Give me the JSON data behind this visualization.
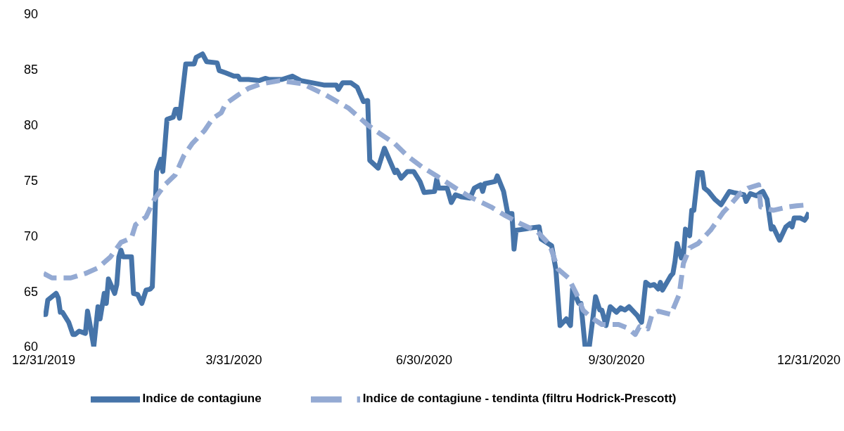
{
  "chart_data": {
    "type": "line",
    "ylim": [
      60,
      90
    ],
    "yticks": [
      60,
      65,
      70,
      75,
      80,
      85,
      90
    ],
    "xlim": [
      "2019-12-31",
      "2020-12-31"
    ],
    "xticks": [
      {
        "value": "2019-12-31",
        "label": "12/31/2019"
      },
      {
        "value": "2020-03-31",
        "label": "3/31/2020"
      },
      {
        "value": "2020-06-30",
        "label": "6/30/2020"
      },
      {
        "value": "2020-09-30",
        "label": "9/30/2020"
      },
      {
        "value": "2020-12-31",
        "label": "12/31/2020"
      }
    ],
    "grid": false,
    "legend": "bottom",
    "marker": "none",
    "series": [
      {
        "name": "Indice de contagiune",
        "color": "#4674a9",
        "line_style": "solid",
        "x": [
          "2019-12-31",
          "2020-01-01",
          "2020-01-02",
          "2020-01-06",
          "2020-01-07",
          "2020-01-08",
          "2020-01-09",
          "2020-01-12",
          "2020-01-14",
          "2020-01-15",
          "2020-01-17",
          "2020-01-20",
          "2020-01-21",
          "2020-01-22",
          "2020-01-24",
          "2020-01-26",
          "2020-01-27",
          "2020-01-29",
          "2020-01-30",
          "2020-01-31",
          "2020-02-03",
          "2020-02-04",
          "2020-02-05",
          "2020-02-06",
          "2020-02-07",
          "2020-02-11",
          "2020-02-12",
          "2020-02-14",
          "2020-02-16",
          "2020-02-18",
          "2020-02-20",
          "2020-02-21",
          "2020-02-22",
          "2020-02-23",
          "2020-02-25",
          "2020-02-26",
          "2020-02-27",
          "2020-02-28",
          "2020-03-02",
          "2020-03-03",
          "2020-03-04",
          "2020-03-05",
          "2020-03-08",
          "2020-03-12",
          "2020-03-13",
          "2020-03-16",
          "2020-03-18",
          "2020-03-23",
          "2020-03-24",
          "2020-03-27",
          "2020-03-31",
          "2020-04-02",
          "2020-04-03",
          "2020-04-07",
          "2020-04-12",
          "2020-04-15",
          "2020-04-17",
          "2020-04-22",
          "2020-04-23",
          "2020-04-28",
          "2020-05-02",
          "2020-05-13",
          "2020-05-19",
          "2020-05-20",
          "2020-05-22",
          "2020-05-26",
          "2020-05-29",
          "2020-06-01",
          "2020-06-03",
          "2020-06-04",
          "2020-06-08",
          "2020-06-11",
          "2020-06-16",
          "2020-06-17",
          "2020-06-19",
          "2020-06-22",
          "2020-06-25",
          "2020-06-28",
          "2020-06-30",
          "2020-07-05",
          "2020-07-06",
          "2020-07-07",
          "2020-07-11",
          "2020-07-13",
          "2020-07-15",
          "2020-07-18",
          "2020-07-22",
          "2020-07-24",
          "2020-07-27",
          "2020-07-28",
          "2020-07-29",
          "2020-08-03",
          "2020-08-04",
          "2020-08-07",
          "2020-08-09",
          "2020-08-11",
          "2020-08-12",
          "2020-08-13",
          "2020-08-17",
          "2020-08-20",
          "2020-08-24",
          "2020-08-25",
          "2020-08-30",
          "2020-09-01",
          "2020-09-03",
          "2020-09-06",
          "2020-09-08",
          "2020-09-09",
          "2020-09-12",
          "2020-09-13",
          "2020-09-15",
          "2020-09-17",
          "2020-09-20",
          "2020-09-22",
          "2020-09-23",
          "2020-09-25",
          "2020-09-27",
          "2020-09-30",
          "2020-10-02",
          "2020-10-04",
          "2020-10-06",
          "2020-10-10",
          "2020-10-12",
          "2020-10-14",
          "2020-10-16",
          "2020-10-18",
          "2020-10-20",
          "2020-10-21",
          "2020-10-22",
          "2020-10-26",
          "2020-10-27",
          "2020-10-28",
          "2020-10-29",
          "2020-10-31",
          "2020-11-01",
          "2020-11-02",
          "2020-11-04",
          "2020-11-05",
          "2020-11-06",
          "2020-11-08",
          "2020-11-10",
          "2020-11-11",
          "2020-11-13",
          "2020-11-16",
          "2020-11-19",
          "2020-11-23",
          "2020-11-25",
          "2020-11-30",
          "2020-12-01",
          "2020-12-03",
          "2020-12-06",
          "2020-12-08",
          "2020-12-09",
          "2020-12-11",
          "2020-12-13",
          "2020-12-14",
          "2020-12-17",
          "2020-12-20",
          "2020-12-22",
          "2020-12-23",
          "2020-12-24",
          "2020-12-27",
          "2020-12-29",
          "2020-12-30",
          "2020-12-31"
        ],
        "values": [
          62.9,
          62.9,
          64.2,
          64.8,
          64.4,
          63.1,
          63.1,
          62.2,
          61.1,
          61.1,
          61.4,
          61.2,
          63.2,
          62.2,
          60,
          63.6,
          62.5,
          64.8,
          63.9,
          66.1,
          64.8,
          65.6,
          68.1,
          68.7,
          68.1,
          68.1,
          64.8,
          64.7,
          63.9,
          65.1,
          65.2,
          65.4,
          70.4,
          75.8,
          76.9,
          75.8,
          78.1,
          80.5,
          80.7,
          81.4,
          81.4,
          80.6,
          85.5,
          85.5,
          86.1,
          86.4,
          85.7,
          85.6,
          84.9,
          84.7,
          84.4,
          84.4,
          84.1,
          84.1,
          84.0,
          84.2,
          84.1,
          84.1,
          84.1,
          84.4,
          84.0,
          83.6,
          83.6,
          83.2,
          83.8,
          83.8,
          83.4,
          82.1,
          82.2,
          76.8,
          76.1,
          77.9,
          75.7,
          75.9,
          75.2,
          75.8,
          75.8,
          74.9,
          73.9,
          74.0,
          75.1,
          74.3,
          74.3,
          73.0,
          73.7,
          73.5,
          73.4,
          74.3,
          74.6,
          74.0,
          74.7,
          74.9,
          75.4,
          74.0,
          72.0,
          72.0,
          68.8,
          70.5,
          70.6,
          70.7,
          70.8,
          69.7,
          69.1,
          67.0,
          61.9,
          62.5,
          61.9,
          65.2,
          63.9,
          63.9,
          60,
          60,
          64.5,
          63.3,
          63.3,
          61.9,
          63.6,
          63.1,
          63.5,
          63.3,
          63.6,
          62.8,
          62.2,
          65.8,
          65.5,
          65.6,
          65.2,
          65.8,
          65.1,
          66.4,
          66.6,
          67.7,
          69.3,
          68.0,
          68.2,
          70.6,
          70.0,
          72.3,
          72.3,
          75.7,
          75.7,
          74.3,
          74.0,
          73.3,
          72.8,
          74.0,
          73.9,
          73.7,
          73.1,
          73.8,
          73.6,
          73.9,
          74.0,
          73.3,
          70.6,
          70.8,
          69.6,
          70.8,
          71.1,
          70.8,
          71.6,
          71.6,
          71.4,
          71.7,
          72.1
        ]
      },
      {
        "name": "Indice de contagiune - tendinta (filtru Hodrick-Prescott)",
        "color": "#94aad3",
        "line_style": "dashed",
        "x": [
          "2019-12-31",
          "2020-01-04",
          "2020-01-13",
          "2020-01-20",
          "2020-01-26",
          "2020-02-01",
          "2020-02-06",
          "2020-02-11",
          "2020-02-13",
          "2020-02-18",
          "2020-02-22",
          "2020-02-27",
          "2020-03-03",
          "2020-03-07",
          "2020-03-11",
          "2020-03-17",
          "2020-03-21",
          "2020-03-25",
          "2020-03-27",
          "2020-04-02",
          "2020-04-07",
          "2020-04-13",
          "2020-04-22",
          "2020-05-03",
          "2020-05-14",
          "2020-05-25",
          "2020-06-03",
          "2020-06-09",
          "2020-06-16",
          "2020-06-22",
          "2020-06-29",
          "2020-07-06",
          "2020-07-15",
          "2020-07-22",
          "2020-08-01",
          "2020-08-08",
          "2020-08-15",
          "2020-08-23",
          "2020-08-29",
          "2020-09-02",
          "2020-09-07",
          "2020-09-11",
          "2020-09-14",
          "2020-09-18",
          "2020-09-23",
          "2020-10-01",
          "2020-10-05",
          "2020-10-09",
          "2020-10-11",
          "2020-10-15",
          "2020-10-17",
          "2020-10-20",
          "2020-10-26",
          "2020-10-30",
          "2020-11-01",
          "2020-11-04",
          "2020-11-08",
          "2020-11-14",
          "2020-11-20",
          "2020-11-24",
          "2020-11-28",
          "2020-12-02",
          "2020-12-07",
          "2020-12-08",
          "2020-12-14",
          "2020-12-21",
          "2020-12-25",
          "2020-12-31"
        ],
        "values": [
          66.6,
          66.2,
          66.2,
          66.6,
          67.1,
          68.1,
          69.4,
          69.8,
          71.0,
          71.7,
          73.3,
          74.6,
          75.5,
          77.2,
          78.3,
          79.5,
          80.6,
          81.1,
          81.9,
          82.7,
          83.3,
          83.7,
          84.0,
          83.7,
          82.7,
          81.5,
          80.0,
          79.2,
          78.3,
          77.2,
          76.2,
          75.4,
          74.3,
          73.5,
          72.6,
          71.8,
          71.1,
          70.4,
          69.2,
          67.0,
          66.2,
          64.7,
          63.3,
          62.6,
          62.0,
          62.0,
          61.7,
          61.1,
          61.8,
          61.6,
          62.9,
          63.2,
          62.9,
          64.7,
          67.5,
          68.9,
          69.3,
          70.5,
          72.1,
          72.9,
          73.8,
          74.3,
          74.6,
          72.6,
          72.3,
          72.6,
          72.7,
          72.8
        ]
      }
    ]
  }
}
